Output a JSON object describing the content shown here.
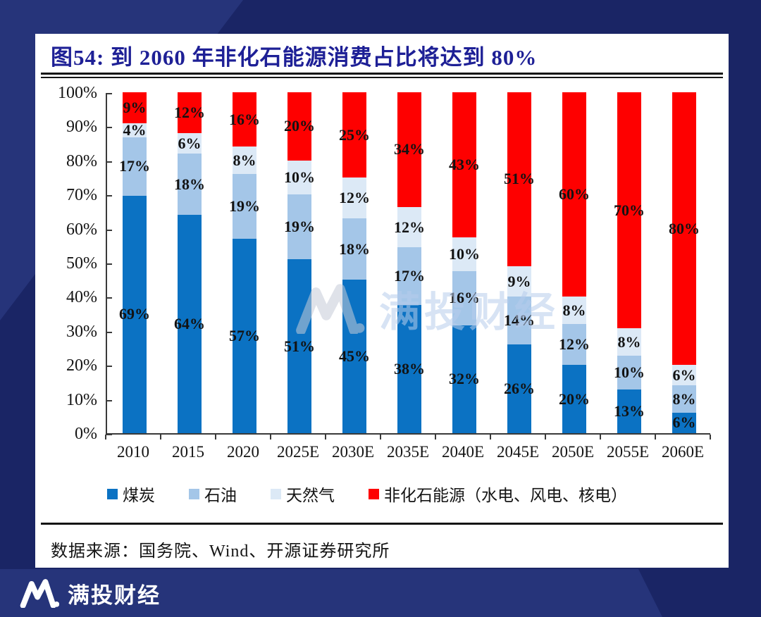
{
  "figure": {
    "title": "图54:  到 2060 年非化石能源消费占比将达到 80%"
  },
  "chart_data": {
    "type": "bar",
    "stacked": true,
    "grid": false,
    "legend_position": "bottom",
    "ylim": [
      0,
      100
    ],
    "y_tick_step": 10,
    "y_tick_suffix": "%",
    "categories": [
      "2010",
      "2015",
      "2020",
      "2025E",
      "2030E",
      "2035E",
      "2040E",
      "2045E",
      "2050E",
      "2055E",
      "2060E"
    ],
    "series": [
      {
        "name": "煤炭",
        "color": "#0b72c3",
        "values": [
          69,
          64,
          57,
          51,
          45,
          38,
          32,
          26,
          20,
          13,
          6
        ]
      },
      {
        "name": "石油",
        "color": "#a4c6e8",
        "values": [
          17,
          18,
          19,
          19,
          18,
          17,
          16,
          14,
          12,
          10,
          8
        ]
      },
      {
        "name": "天然气",
        "color": "#dce9f6",
        "values": [
          4,
          6,
          8,
          10,
          12,
          12,
          10,
          9,
          8,
          8,
          6
        ]
      },
      {
        "name": "非化石能源（水电、风电、核电）",
        "color": "#fe0000",
        "values": [
          9,
          12,
          16,
          20,
          25,
          34,
          43,
          51,
          60,
          70,
          80
        ]
      }
    ],
    "data_label_suffix": "%"
  },
  "source": {
    "label": "数据来源：国务院、Wind、开源证券研究所"
  },
  "watermark": {
    "text": "满投财经"
  },
  "footer": {
    "brand": "满投财经"
  },
  "colors": {
    "background_dark": "#1a2565",
    "background_light": "#26347a",
    "card": "#ffffff",
    "title_blue": "#1e2096"
  }
}
